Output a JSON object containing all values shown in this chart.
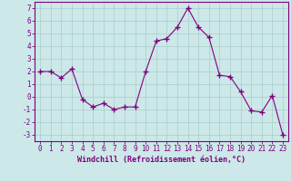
{
  "x": [
    0,
    1,
    2,
    3,
    4,
    5,
    6,
    7,
    8,
    9,
    10,
    11,
    12,
    13,
    14,
    15,
    16,
    17,
    18,
    19,
    20,
    21,
    22,
    23
  ],
  "y": [
    2,
    2,
    1.5,
    2.2,
    -0.2,
    -0.8,
    -0.5,
    -1.0,
    -0.8,
    -0.8,
    2.0,
    4.4,
    4.6,
    5.5,
    7.0,
    5.5,
    4.7,
    1.7,
    1.6,
    0.4,
    -1.1,
    -1.2,
    0.1,
    -3.0
  ],
  "line_color": "#800080",
  "marker": "+",
  "markersize": 4,
  "markeredgewidth": 1.0,
  "linewidth": 0.8,
  "bg_color": "#cce8e8",
  "grid_color": "#aacccc",
  "xlabel": "Windchill (Refroidissement éolien,°C)",
  "ylabel": "",
  "title": "",
  "xlim": [
    -0.5,
    23.5
  ],
  "ylim": [
    -3.5,
    7.5
  ],
  "yticks": [
    -3,
    -2,
    -1,
    0,
    1,
    2,
    3,
    4,
    5,
    6,
    7
  ],
  "xticks": [
    0,
    1,
    2,
    3,
    4,
    5,
    6,
    7,
    8,
    9,
    10,
    11,
    12,
    13,
    14,
    15,
    16,
    17,
    18,
    19,
    20,
    21,
    22,
    23
  ],
  "tick_fontsize": 5.5,
  "xlabel_fontsize": 6.0,
  "tick_color": "#800080",
  "axis_color": "#800080",
  "spine_color": "#800080"
}
